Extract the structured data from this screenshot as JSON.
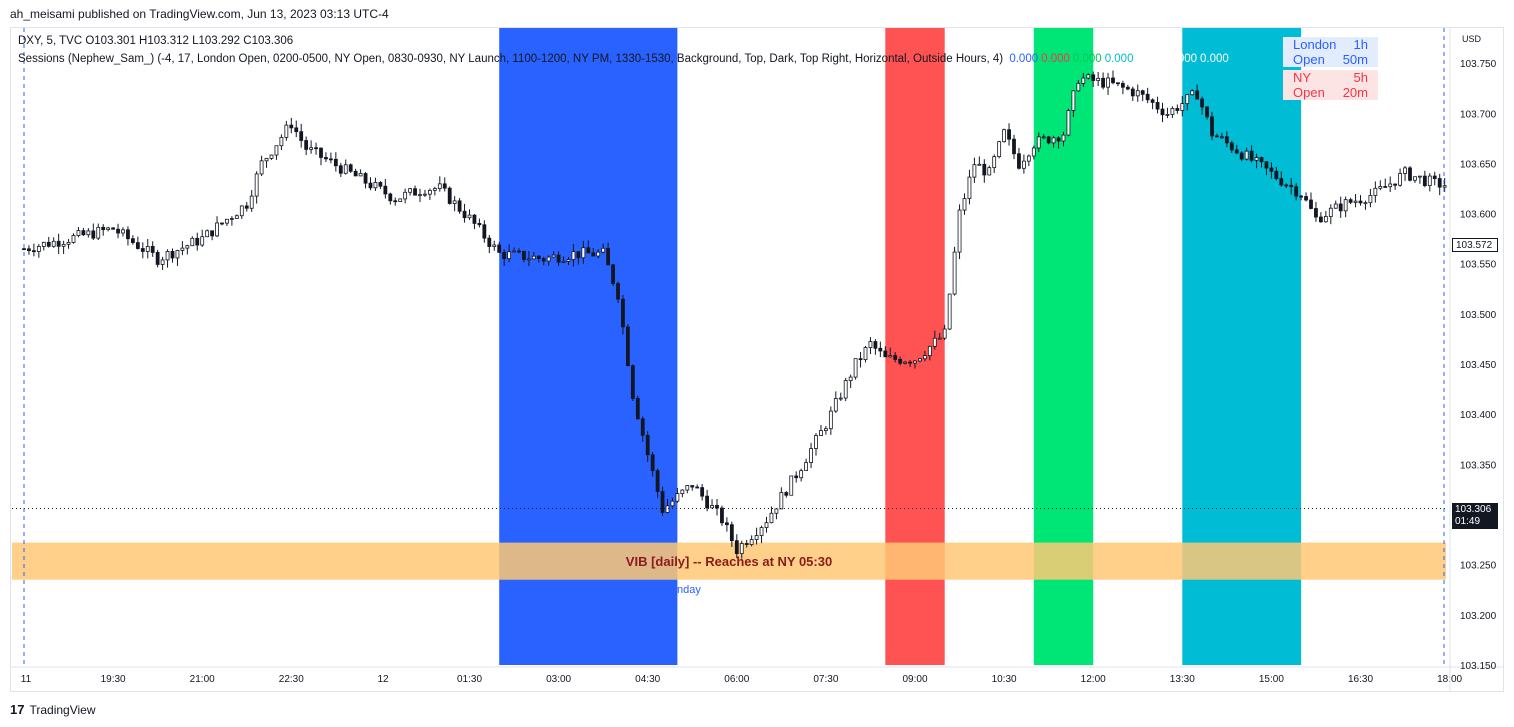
{
  "publisher": "ah_meisami published on TradingView.com, Jun 13, 2023 03:13 UTC-4",
  "footer": {
    "logo": "17",
    "brand": "TradingView"
  },
  "legend": {
    "line1": "DXY, 5, TVC  O103.301  H103.312  L103.292  C103.306",
    "line2": "Sessions (Nephew_Sam_) (-4, 17, London Open, 0200-0500, NY Open, 0830-0930, NY Launch, 1100-1200, NY PM, 1330-1530, Background, Top, Dark, Top Right, Horizontal, Outside Hours, 4)",
    "values": [
      {
        "text": "0.000",
        "color": "#2962ff"
      },
      {
        "text": "0.000",
        "color": "#f23645"
      },
      {
        "text": "0.000",
        "color": "#00c853"
      },
      {
        "text": "0.000",
        "color": "#00bcd4"
      },
      {
        "text": "0.000",
        "color": "#ffffff"
      },
      {
        "text": "0.000",
        "color": "#ffffff"
      },
      {
        "text": "0.000",
        "color": "#ffffff"
      }
    ]
  },
  "session_table": {
    "rows": [
      {
        "name": "London Open",
        "time": "1h 50m"
      },
      {
        "name": "NY Open",
        "time": "5h 20m"
      }
    ]
  },
  "axis": {
    "currency": "USD",
    "last_price": "103.572",
    "close_price": "103.306",
    "countdown": "01:49"
  },
  "chart_data": {
    "type": "candlestick",
    "symbol": "DXY",
    "interval": "5",
    "ylim": [
      103.15,
      103.785
    ],
    "y_ticks": [
      "103.150",
      "103.200",
      "103.250",
      "103.300",
      "103.350",
      "103.400",
      "103.450",
      "103.500",
      "103.550",
      "103.600",
      "103.650",
      "103.700",
      "103.750"
    ],
    "x_ticks": [
      "11",
      "19:30",
      "21:00",
      "22:30",
      "12",
      "01:30",
      "03:00",
      "04:30",
      "06:00",
      "07:30",
      "09:00",
      "10:30",
      "12:00",
      "13:30",
      "15:00",
      "16:30",
      "18:00"
    ],
    "sessions": [
      {
        "name": "London Open",
        "start": "02:00",
        "end": "05:00",
        "color": "#2962ff"
      },
      {
        "name": "NY Open",
        "start": "08:30",
        "end": "09:30",
        "color": "#ff5252"
      },
      {
        "name": "NY Launch",
        "start": "11:00",
        "end": "12:00",
        "color": "#00e676"
      },
      {
        "name": "NY PM",
        "start": "13:30",
        "end": "15:30",
        "color": "#00bcd4"
      }
    ],
    "zone": {
      "label": "VIB [daily] -- Reaches at NY 05:30",
      "low": 103.235,
      "high": 103.272,
      "color": "#ffc875"
    },
    "partial_label": "nday",
    "close_line": 103.306,
    "trend": [
      [
        "18:00",
        103.565
      ],
      [
        "18:45",
        103.575
      ],
      [
        "19:30",
        103.585
      ],
      [
        "20:15",
        103.555
      ],
      [
        "21:00",
        103.575
      ],
      [
        "21:45",
        103.61
      ],
      [
        "22:00",
        103.65
      ],
      [
        "22:30",
        103.69
      ],
      [
        "22:45",
        103.665
      ],
      [
        "23:30",
        103.64
      ],
      [
        "00:15",
        103.615
      ],
      [
        "00:45",
        103.625
      ],
      [
        "01:00",
        103.625
      ],
      [
        "01:30",
        103.595
      ],
      [
        "02:00",
        103.56
      ],
      [
        "02:45",
        103.555
      ],
      [
        "03:15",
        103.56
      ],
      [
        "03:45",
        103.56
      ],
      [
        "04:00",
        103.52
      ],
      [
        "04:15",
        103.42
      ],
      [
        "04:30",
        103.36
      ],
      [
        "04:45",
        103.305
      ],
      [
        "05:15",
        103.33
      ],
      [
        "05:45",
        103.295
      ],
      [
        "06:00",
        103.265
      ],
      [
        "06:30",
        103.295
      ],
      [
        "07:00",
        103.34
      ],
      [
        "07:30",
        103.39
      ],
      [
        "08:00",
        103.45
      ],
      [
        "08:15",
        103.47
      ],
      [
        "08:30",
        103.455
      ],
      [
        "09:00",
        103.455
      ],
      [
        "09:30",
        103.48
      ],
      [
        "09:45",
        103.6
      ],
      [
        "10:00",
        103.65
      ],
      [
        "10:15",
        103.64
      ],
      [
        "10:30",
        103.68
      ],
      [
        "10:45",
        103.65
      ],
      [
        "11:00",
        103.67
      ],
      [
        "11:30",
        103.68
      ],
      [
        "11:45",
        103.735
      ],
      [
        "12:15",
        103.73
      ],
      [
        "12:45",
        103.72
      ],
      [
        "13:15",
        103.7
      ],
      [
        "13:30",
        103.71
      ],
      [
        "13:45",
        103.72
      ],
      [
        "14:00",
        103.68
      ],
      [
        "14:30",
        103.66
      ],
      [
        "15:00",
        103.64
      ],
      [
        "15:30",
        103.62
      ],
      [
        "15:45",
        103.595
      ],
      [
        "16:15",
        103.61
      ],
      [
        "16:45",
        103.62
      ],
      [
        "17:15",
        103.64
      ],
      [
        "17:45",
        103.63
      ],
      [
        "18:00",
        103.628
      ]
    ]
  }
}
